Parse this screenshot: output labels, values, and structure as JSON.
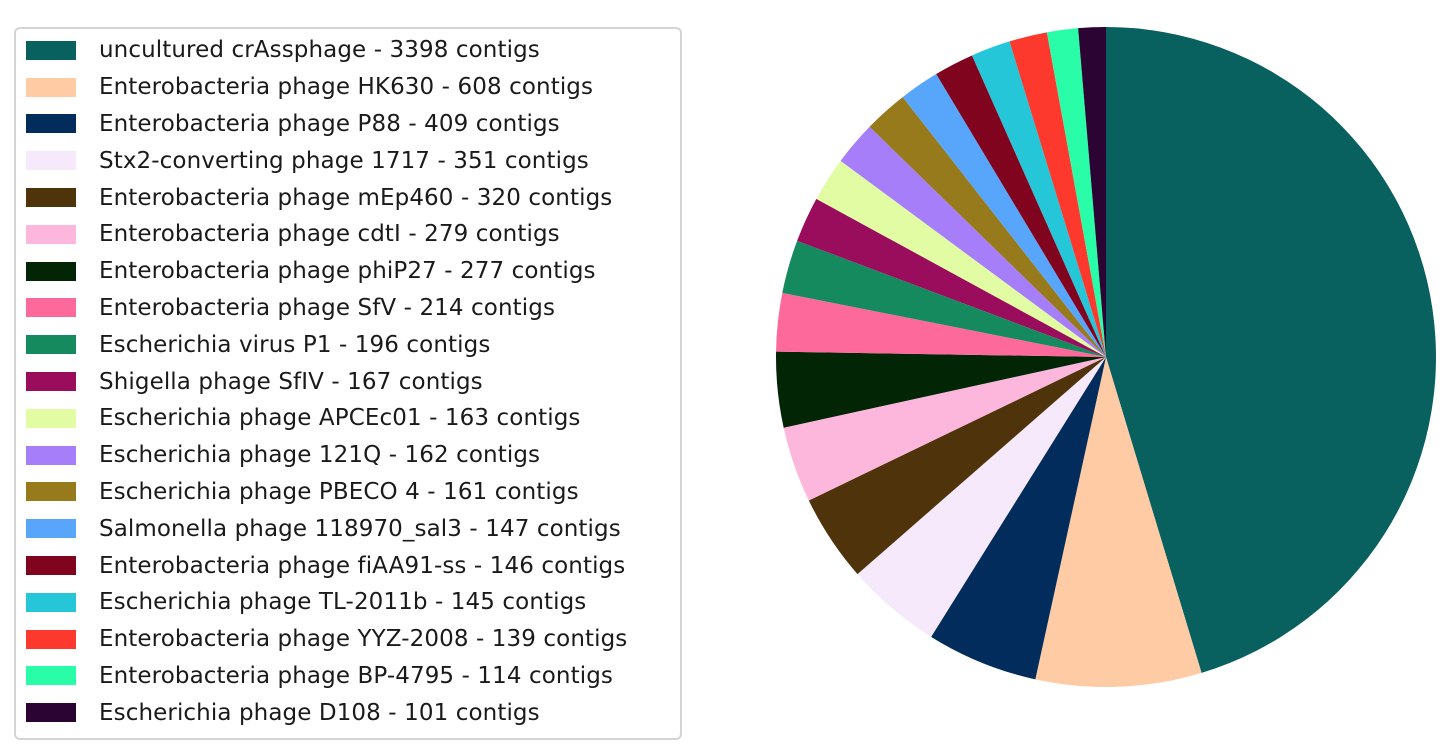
{
  "chart_data": {
    "type": "pie",
    "title": "",
    "start_angle_deg": 90,
    "direction": "clockwise",
    "legend_position": "left",
    "slices": [
      {
        "label": "uncultured crAssphage - 3398 contigs",
        "value": 3398,
        "color": "#08605f"
      },
      {
        "label": "Enterobacteria phage HK630 - 608 contigs",
        "value": 608,
        "color": "#fecba5"
      },
      {
        "label": "Enterobacteria phage P88 - 409 contigs",
        "value": 409,
        "color": "#022c5c"
      },
      {
        "label": "Stx2-converting phage 1717 - 351 contigs",
        "value": 351,
        "color": "#f6e9fc"
      },
      {
        "label": "Enterobacteria phage mEp460 - 320 contigs",
        "value": 320,
        "color": "#4f330a"
      },
      {
        "label": "Enterobacteria phage cdtI - 279 contigs",
        "value": 279,
        "color": "#fdb7dc"
      },
      {
        "label": "Enterobacteria phage phiP27 - 277 contigs",
        "value": 277,
        "color": "#012505"
      },
      {
        "label": "Enterobacteria phage SfV - 214 contigs",
        "value": 214,
        "color": "#fd699b"
      },
      {
        "label": "Escherichia virus P1 - 196 contigs",
        "value": 196,
        "color": "#168a5f"
      },
      {
        "label": "Shigella phage SfIV - 167 contigs",
        "value": 167,
        "color": "#990d5c"
      },
      {
        "label": "Escherichia phage APCEc01 - 163 contigs",
        "value": 163,
        "color": "#e2fca4"
      },
      {
        "label": "Escherichia phage 121Q - 162 contigs",
        "value": 162,
        "color": "#a67ef9"
      },
      {
        "label": "Escherichia phage PBECO 4 - 161 contigs",
        "value": 161,
        "color": "#967a1c"
      },
      {
        "label": "Salmonella phage 118970_sal3 - 147 contigs",
        "value": 147,
        "color": "#58a6fb"
      },
      {
        "label": "Enterobacteria phage fiAA91-ss - 146 contigs",
        "value": 146,
        "color": "#80041d"
      },
      {
        "label": "Escherichia phage TL-2011b - 145 contigs",
        "value": 145,
        "color": "#24c6d8"
      },
      {
        "label": "Enterobacteria phage YYZ-2008 - 139 contigs",
        "value": 139,
        "color": "#fd382d"
      },
      {
        "label": "Enterobacteria phage BP-4795 - 114 contigs",
        "value": 114,
        "color": "#2afda8"
      },
      {
        "label": "Escherichia phage D108 - 101 contigs",
        "value": 101,
        "color": "#2c0434"
      }
    ]
  }
}
